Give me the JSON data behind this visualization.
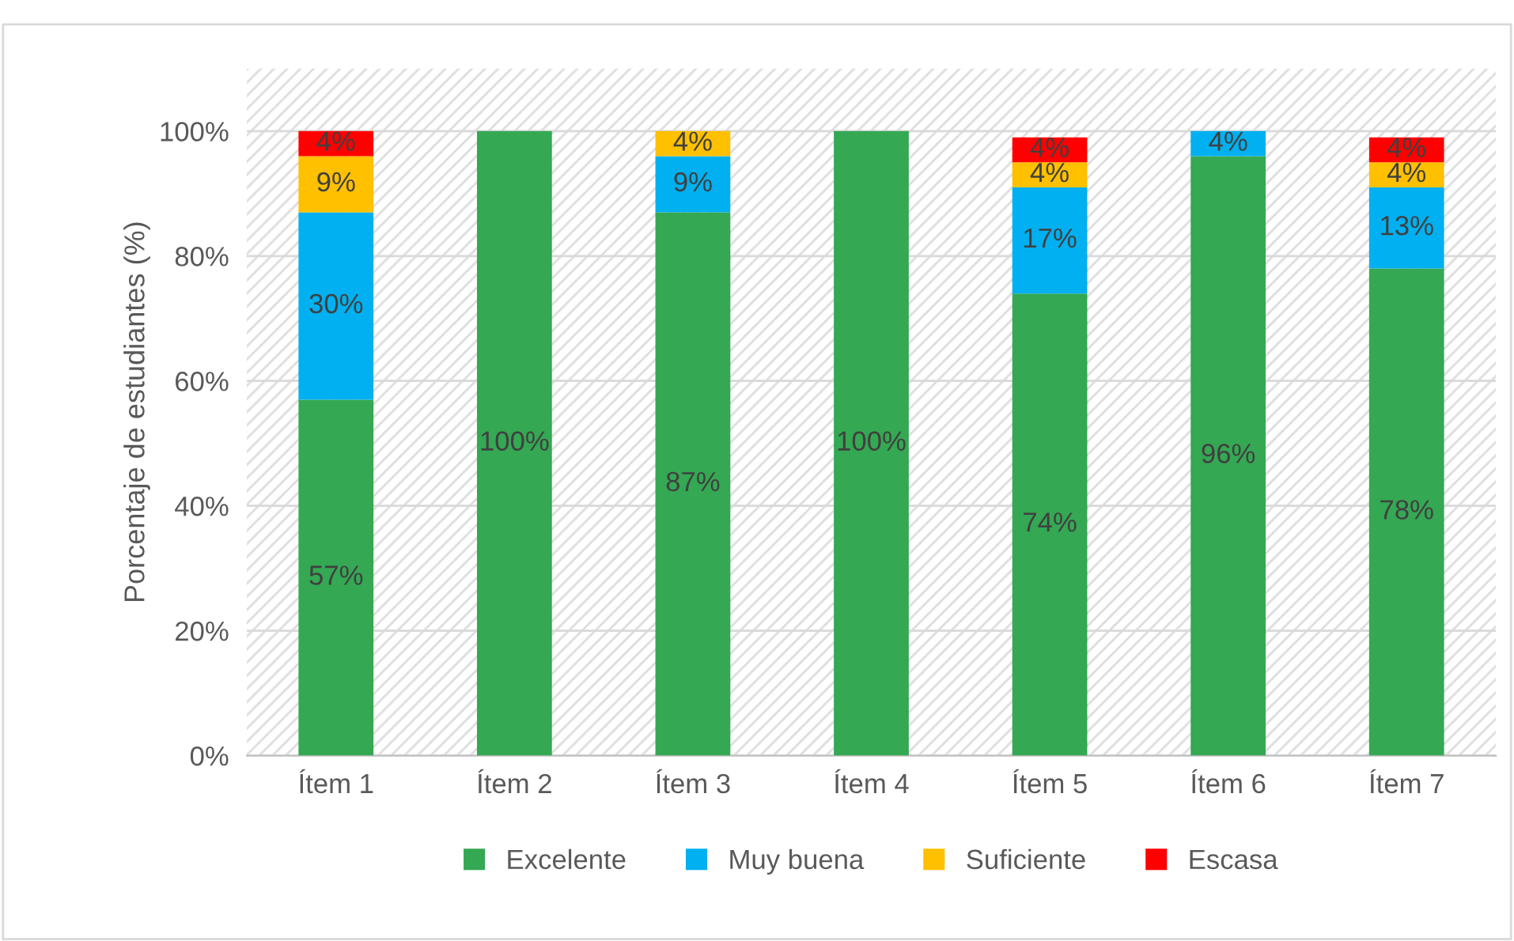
{
  "chart_data": {
    "type": "bar",
    "stacked": true,
    "ylabel": "Porcentaje de estudiantes (%)",
    "categories": [
      "Ítem 1",
      "Ítem 2",
      "Ítem 3",
      "Ítem 4",
      "Ítem 5",
      "Ítem 6",
      "Ítem 7"
    ],
    "series": [
      {
        "name": "Excelente",
        "color": "#34a853",
        "values": [
          57,
          100,
          87,
          100,
          74,
          96,
          78
        ],
        "value_labels": [
          "57%",
          "100%",
          "87%",
          "100%",
          "74%",
          "96%",
          "78%"
        ]
      },
      {
        "name": "Muy buena",
        "color": "#00b0f0",
        "values": [
          30,
          null,
          9,
          null,
          17,
          4,
          13
        ],
        "value_labels": [
          "30%",
          null,
          "9%",
          null,
          "17%",
          "4%",
          "13%"
        ]
      },
      {
        "name": "Suficiente",
        "color": "#ffc000",
        "values": [
          9,
          null,
          4,
          null,
          4,
          null,
          4
        ],
        "value_labels": [
          "9%",
          null,
          "4%",
          null,
          "4%",
          null,
          "4%"
        ]
      },
      {
        "name": "Escasa",
        "color": "#ff0000",
        "values": [
          4,
          null,
          null,
          null,
          4,
          null,
          4
        ],
        "value_labels": [
          "4%",
          null,
          null,
          null,
          "4%",
          null,
          "4%"
        ]
      }
    ],
    "ylim": [
      0,
      110
    ],
    "yticks": [
      {
        "value": 0,
        "label": "0%"
      },
      {
        "value": 20,
        "label": "20%"
      },
      {
        "value": 40,
        "label": "40%"
      },
      {
        "value": 60,
        "label": "60%"
      },
      {
        "value": 80,
        "label": "80%"
      },
      {
        "value": 100,
        "label": "100%"
      }
    ],
    "grid": "y",
    "legend": "bottom"
  }
}
